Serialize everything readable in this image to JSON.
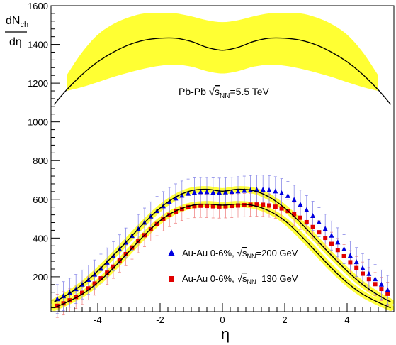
{
  "chart_data": {
    "type": "line",
    "xlabel": "η",
    "ylabel": {
      "main": "dN",
      "sub": "ch",
      "denominator": "dη"
    },
    "xlim": [
      -5.5,
      5.5
    ],
    "ylim": [
      20,
      1600
    ],
    "x_ticks": [
      -4,
      -2,
      0,
      2,
      4
    ],
    "x_tick_labels": [
      "-4",
      "-2",
      "0",
      "2",
      "4"
    ],
    "y_ticks": [
      200,
      400,
      600,
      800,
      1000,
      1200,
      1400,
      1600
    ],
    "y_tick_labels": [
      "200",
      "400",
      "600",
      "800",
      "1000",
      "1200",
      "1400",
      "1600"
    ],
    "grid": false,
    "annotations": [
      {
        "text_prefix": "Pb-Pb ",
        "root_symbol": "s",
        "root_sub": "NN",
        "text_suffix": "=5.5 TeV",
        "color": "#000000"
      }
    ],
    "legend": {
      "placement": "bottom-center",
      "entries": [
        {
          "text_prefix": "Au-Au 0-6%, ",
          "root_symbol": "s",
          "root_sub": "NN",
          "text_suffix": "=200 GeV",
          "color": "#0000e0",
          "marker": "triangle"
        },
        {
          "text_prefix": "Au-Au 0-6%, ",
          "root_symbol": "s",
          "root_sub": "NN",
          "text_suffix": "=130 GeV",
          "color": "#e00000",
          "marker": "square"
        }
      ]
    },
    "colors": {
      "band": "#ffff33",
      "curve": "#000000",
      "au200": "#0000e0",
      "au130": "#e00000",
      "error_200": "#8888e8",
      "error_130": "#f08888"
    },
    "series": [
      {
        "name": "Pb-Pb √sNN=5.5 TeV",
        "kind": "curve",
        "x": [
          -5.4,
          -5.0,
          -4.5,
          -4.0,
          -3.5,
          -3.0,
          -2.5,
          -2.0,
          -1.5,
          -1.0,
          -0.5,
          0.0,
          0.5,
          1.0,
          1.5,
          2.0,
          2.5,
          3.0,
          3.5,
          4.0,
          4.5,
          5.0,
          5.4
        ],
        "y": [
          1090,
          1165,
          1245,
          1310,
          1360,
          1398,
          1422,
          1432,
          1432,
          1415,
          1385,
          1370,
          1385,
          1415,
          1432,
          1432,
          1422,
          1398,
          1360,
          1310,
          1245,
          1165,
          1090
        ]
      },
      {
        "name": "Pb-Pb band",
        "kind": "band",
        "x": [
          -5.0,
          -4.5,
          -4.0,
          -3.5,
          -3.0,
          -2.5,
          -2.0,
          -1.5,
          -1.0,
          -0.5,
          0.0,
          0.5,
          1.0,
          1.5,
          2.0,
          2.5,
          3.0,
          3.5,
          4.0,
          4.5,
          5.0
        ],
        "upper": [
          1240,
          1360,
          1450,
          1505,
          1540,
          1560,
          1562,
          1560,
          1545,
          1525,
          1515,
          1525,
          1545,
          1560,
          1562,
          1560,
          1540,
          1505,
          1450,
          1360,
          1240
        ],
        "lower": [
          1160,
          1180,
          1205,
          1232,
          1255,
          1275,
          1290,
          1295,
          1285,
          1262,
          1250,
          1262,
          1285,
          1295,
          1290,
          1275,
          1255,
          1232,
          1205,
          1180,
          1160
        ]
      },
      {
        "name": "Au-Au 0-6%, √sNN=200 GeV",
        "kind": "points",
        "marker": "triangle",
        "x": [
          -5.3,
          -5.1,
          -4.9,
          -4.7,
          -4.5,
          -4.3,
          -4.1,
          -3.9,
          -3.7,
          -3.5,
          -3.3,
          -3.1,
          -2.9,
          -2.7,
          -2.5,
          -2.3,
          -2.1,
          -1.9,
          -1.7,
          -1.5,
          -1.3,
          -1.1,
          -0.9,
          -0.7,
          -0.5,
          -0.3,
          -0.1,
          0.1,
          0.3,
          0.5,
          0.7,
          0.9,
          1.1,
          1.3,
          1.5,
          1.7,
          1.9,
          2.1,
          2.3,
          2.5,
          2.7,
          2.9,
          3.1,
          3.3,
          3.5,
          3.7,
          3.9,
          4.1,
          4.3,
          4.5,
          4.7,
          4.9,
          5.1,
          5.3
        ],
        "y": [
          85,
          100,
          118,
          137,
          160,
          185,
          212,
          242,
          274,
          307,
          342,
          377,
          412,
          447,
          480,
          512,
          540,
          565,
          587,
          605,
          620,
          630,
          636,
          638,
          638,
          636,
          635,
          637,
          639,
          642,
          645,
          648,
          650,
          650,
          648,
          642,
          632,
          618,
          598,
          573,
          545,
          515,
          482,
          448,
          413,
          378,
          343,
          309,
          276,
          245,
          215,
          188,
          160,
          132
        ],
        "error": 75
      },
      {
        "name": "Au-Au 0-6%, √sNN=130 GeV",
        "kind": "points",
        "marker": "square",
        "x": [
          -5.3,
          -5.1,
          -4.9,
          -4.7,
          -4.5,
          -4.3,
          -4.1,
          -3.9,
          -3.7,
          -3.5,
          -3.3,
          -3.1,
          -2.9,
          -2.7,
          -2.5,
          -2.3,
          -2.1,
          -1.9,
          -1.7,
          -1.5,
          -1.3,
          -1.1,
          -0.9,
          -0.7,
          -0.5,
          -0.3,
          -0.1,
          0.1,
          0.3,
          0.5,
          0.7,
          0.9,
          1.1,
          1.3,
          1.5,
          1.7,
          1.9,
          2.1,
          2.3,
          2.5,
          2.7,
          2.9,
          3.1,
          3.3,
          3.5,
          3.7,
          3.9,
          4.1,
          4.3,
          4.5,
          4.7,
          4.9,
          5.1,
          5.3
        ],
        "y": [
          50,
          63,
          78,
          96,
          117,
          140,
          165,
          192,
          221,
          252,
          284,
          317,
          351,
          384,
          415,
          445,
          472,
          497,
          519,
          537,
          551,
          560,
          565,
          567,
          566,
          564,
          563,
          564,
          566,
          568,
          570,
          572,
          573,
          572,
          568,
          562,
          553,
          540,
          524,
          505,
          482,
          457,
          430,
          401,
          370,
          338,
          306,
          275,
          245,
          216,
          188,
          162,
          137,
          112
        ],
        "error": 60
      },
      {
        "name": "Au-Au 200 GeV fit",
        "kind": "curve",
        "x": [
          -5.4,
          -5.0,
          -4.5,
          -4.0,
          -3.5,
          -3.0,
          -2.5,
          -2.0,
          -1.5,
          -1.0,
          -0.5,
          0.0,
          0.5,
          1.0,
          1.5,
          2.0,
          2.5,
          3.0,
          3.5,
          4.0,
          4.5,
          5.0,
          5.4
        ],
        "y": [
          70,
          105,
          160,
          230,
          310,
          395,
          480,
          555,
          612,
          645,
          652,
          642,
          652,
          645,
          612,
          555,
          480,
          395,
          310,
          230,
          160,
          105,
          70
        ]
      },
      {
        "name": "Au-Au 130 GeV fit",
        "kind": "curve",
        "x": [
          -5.4,
          -5.0,
          -4.5,
          -4.0,
          -3.5,
          -3.0,
          -2.5,
          -2.0,
          -1.5,
          -1.0,
          -0.5,
          0.0,
          0.5,
          1.0,
          1.5,
          2.0,
          2.5,
          3.0,
          3.5,
          4.0,
          4.5,
          5.0,
          5.4
        ],
        "y": [
          40,
          68,
          110,
          170,
          245,
          330,
          415,
          490,
          540,
          568,
          575,
          570,
          575,
          568,
          540,
          490,
          415,
          330,
          245,
          170,
          110,
          68,
          40
        ]
      }
    ]
  }
}
